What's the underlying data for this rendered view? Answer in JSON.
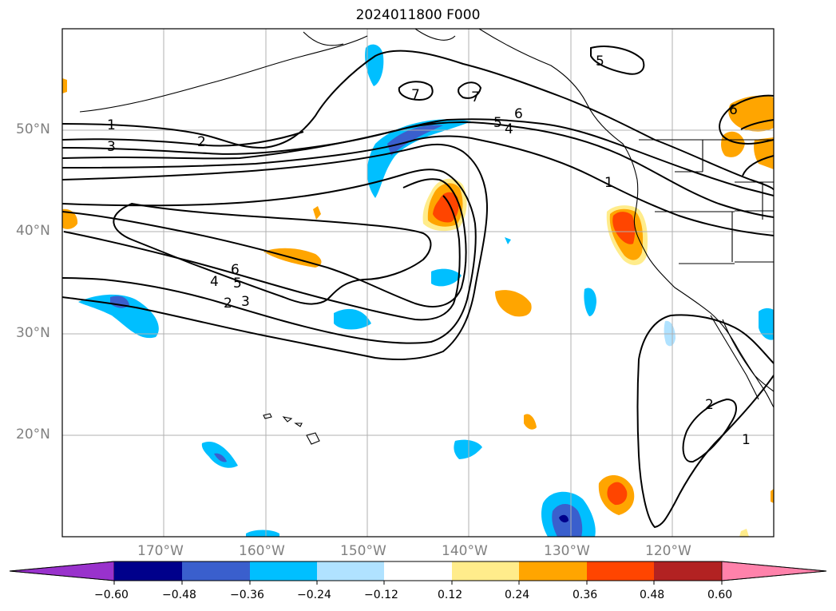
{
  "title": "2024011800 F000",
  "map": {
    "lon_range": [
      -180,
      -110
    ],
    "lat_range": [
      10,
      60
    ],
    "lat_labels": [
      "50°N",
      "40°N",
      "30°N",
      "20°N"
    ],
    "lon_labels": [
      "170°W",
      "160°W",
      "150°W",
      "140°W",
      "130°W",
      "120°W"
    ],
    "contour_labels": [
      "1",
      "2",
      "3",
      "1",
      "2",
      "3",
      "4",
      "5",
      "6",
      "7",
      "7",
      "5",
      "6",
      "5",
      "4",
      "1",
      "6",
      "2",
      "1"
    ]
  },
  "colorbar": {
    "ticks": [
      "−0.60",
      "−0.48",
      "−0.36",
      "−0.24",
      "−0.12",
      "0.12",
      "0.24",
      "0.36",
      "0.48",
      "0.60"
    ],
    "colors": [
      "#9932cc",
      "#00008b",
      "#3a5fcd",
      "#00bfff",
      "#b0e2ff",
      "#ffffff",
      "#ffec8b",
      "#ffa500",
      "#ff4500",
      "#b22222",
      "#ff82ab"
    ]
  }
}
